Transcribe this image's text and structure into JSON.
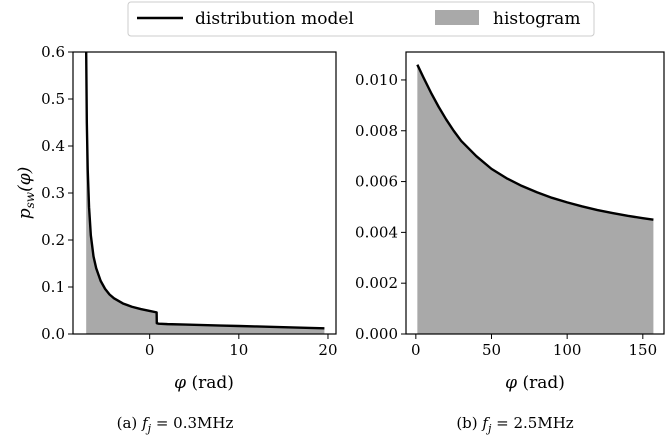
{
  "legend": {
    "line_label": "distribution model",
    "patch_label": "histogram",
    "placement": "top-center"
  },
  "colors": {
    "line": "#000000",
    "fill": "#a9a9a9",
    "axes": "#000000",
    "background": "#ffffff"
  },
  "chart_data": [
    {
      "type": "area",
      "panel": "a",
      "caption": "(a) f_j = 0.3MHz",
      "caption_parts": {
        "prefix": "(a) ",
        "var": "f",
        "sub": "j",
        "suffix": " = 0.3MHz"
      },
      "xlabel_var": "φ",
      "xlabel_unit": " (rad)",
      "ylabel_parts": {
        "var": "p",
        "sub": "sw",
        "arg": "(φ)"
      },
      "xlim": [
        -8.6,
        20.9
      ],
      "ylim": [
        0.0,
        0.6
      ],
      "xticks": [
        0,
        10,
        20
      ],
      "yticks": [
        0.0,
        0.1,
        0.2,
        0.3,
        0.4,
        0.5,
        0.6
      ],
      "ytick_labels": [
        "0.0",
        "0.1",
        "0.2",
        "0.3",
        "0.4",
        "0.5",
        "0.6"
      ],
      "grid": false,
      "series": [
        {
          "name": "distribution model",
          "x": [
            -7.12,
            -7.05,
            -6.95,
            -6.8,
            -6.6,
            -6.3,
            -6.0,
            -5.5,
            -5.0,
            -4.5,
            -4.0,
            -3.0,
            -2.0,
            -1.0,
            0.0,
            0.78,
            0.8,
            1.0,
            2.0,
            4.0,
            6.0,
            8.0,
            10.0,
            12.0,
            14.0,
            16.0,
            18.0,
            19.6
          ],
          "y": [
            0.6,
            0.45,
            0.35,
            0.27,
            0.21,
            0.165,
            0.14,
            0.113,
            0.096,
            0.084,
            0.076,
            0.065,
            0.058,
            0.053,
            0.049,
            0.046,
            0.023,
            0.022,
            0.021,
            0.02,
            0.019,
            0.018,
            0.017,
            0.016,
            0.015,
            0.014,
            0.013,
            0.012
          ]
        }
      ]
    },
    {
      "type": "area",
      "panel": "b",
      "caption": "(b) f_j = 2.5MHz",
      "caption_parts": {
        "prefix": "(b) ",
        "var": "f",
        "sub": "j",
        "suffix": " = 2.5MHz"
      },
      "xlabel_var": "φ",
      "xlabel_unit": " (rad)",
      "xlim": [
        -6.5,
        164
      ],
      "ylim": [
        0.0,
        0.0111
      ],
      "xticks": [
        0,
        50,
        100,
        150
      ],
      "yticks": [
        0.0,
        0.002,
        0.004,
        0.006,
        0.008,
        0.01
      ],
      "ytick_labels": [
        "0.000",
        "0.002",
        "0.004",
        "0.006",
        "0.008",
        "0.010"
      ],
      "grid": false,
      "series": [
        {
          "name": "distribution model",
          "x": [
            1,
            5,
            10,
            15,
            20,
            25,
            30,
            40,
            50,
            60,
            70,
            80,
            90,
            100,
            110,
            120,
            130,
            140,
            150,
            157
          ],
          "y": [
            0.0106,
            0.0101,
            0.0095,
            0.00895,
            0.00845,
            0.008,
            0.0076,
            0.007,
            0.0065,
            0.00613,
            0.00583,
            0.00558,
            0.00536,
            0.00518,
            0.00502,
            0.00488,
            0.00476,
            0.00465,
            0.00456,
            0.0045
          ]
        }
      ]
    }
  ]
}
